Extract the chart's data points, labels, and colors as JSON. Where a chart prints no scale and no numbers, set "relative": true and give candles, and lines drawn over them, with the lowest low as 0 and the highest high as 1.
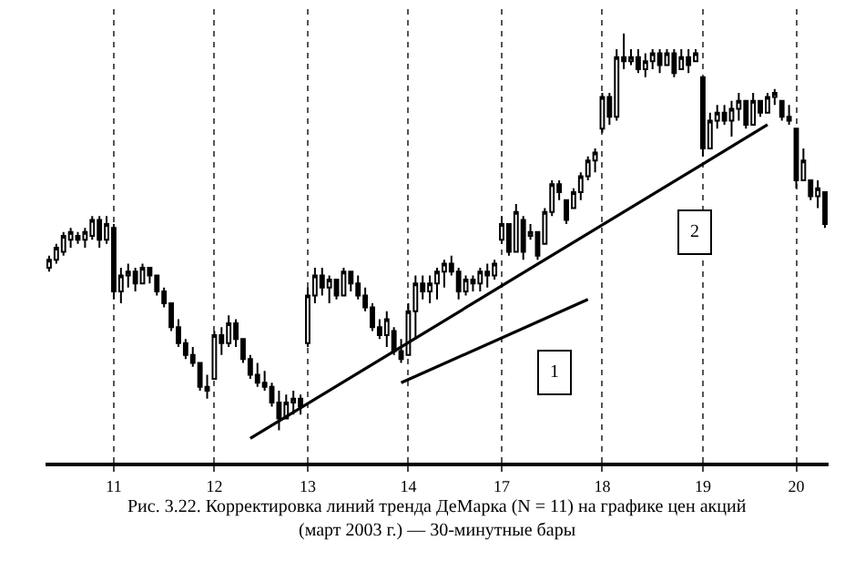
{
  "chart_data": {
    "type": "candlestick",
    "relative": true,
    "grid": "x",
    "categories": [
      null,
      null,
      null,
      null,
      null,
      null,
      null,
      null,
      null,
      "11",
      null,
      null,
      null,
      null,
      null,
      null,
      null,
      null,
      null,
      null,
      null,
      null,
      null,
      "12",
      null,
      null,
      null,
      null,
      null,
      null,
      null,
      null,
      null,
      null,
      null,
      null,
      "13",
      null,
      null,
      null,
      null,
      null,
      null,
      null,
      null,
      null,
      null,
      null,
      null,
      null,
      "14",
      null,
      null,
      null,
      null,
      null,
      null,
      null,
      null,
      null,
      null,
      null,
      null,
      "17",
      null,
      null,
      null,
      null,
      null,
      null,
      null,
      null,
      null,
      null,
      null,
      null,
      null,
      "18",
      null,
      null,
      null,
      null,
      null,
      null,
      null,
      null,
      null,
      null,
      null,
      null,
      null,
      "19",
      null,
      null,
      null,
      null,
      null,
      null,
      null,
      null,
      null,
      null,
      null,
      null,
      "20",
      null,
      null,
      null,
      null
    ],
    "series": [
      {
        "color": "#000000",
        "ohlc": [
          [
            0.41,
            0.44,
            0.4,
            0.43
          ],
          [
            0.43,
            0.47,
            0.42,
            0.46
          ],
          [
            0.45,
            0.5,
            0.44,
            0.49
          ],
          [
            0.48,
            0.51,
            0.46,
            0.5
          ],
          [
            0.49,
            0.5,
            0.47,
            0.48
          ],
          [
            0.48,
            0.51,
            0.46,
            0.5
          ],
          [
            0.49,
            0.54,
            0.48,
            0.53
          ],
          [
            0.53,
            0.54,
            0.46,
            0.48
          ],
          [
            0.48,
            0.54,
            0.47,
            0.52
          ],
          [
            0.51,
            0.52,
            0.33,
            0.35
          ],
          [
            0.35,
            0.41,
            0.32,
            0.39
          ],
          [
            0.39,
            0.42,
            0.36,
            0.4
          ],
          [
            0.4,
            0.41,
            0.35,
            0.37
          ],
          [
            0.37,
            0.42,
            0.37,
            0.41
          ],
          [
            0.41,
            0.41,
            0.37,
            0.39
          ],
          [
            0.39,
            0.39,
            0.34,
            0.35
          ],
          [
            0.35,
            0.36,
            0.31,
            0.32
          ],
          [
            0.32,
            0.32,
            0.25,
            0.26
          ],
          [
            0.26,
            0.28,
            0.21,
            0.22
          ],
          [
            0.22,
            0.23,
            0.18,
            0.19
          ],
          [
            0.19,
            0.21,
            0.16,
            0.17
          ],
          [
            0.17,
            0.17,
            0.1,
            0.11
          ],
          [
            0.11,
            0.14,
            0.08,
            0.1
          ],
          [
            0.13,
            0.25,
            0.13,
            0.24
          ],
          [
            0.24,
            0.26,
            0.19,
            0.22
          ],
          [
            0.22,
            0.29,
            0.21,
            0.27
          ],
          [
            0.27,
            0.28,
            0.21,
            0.23
          ],
          [
            0.23,
            0.23,
            0.17,
            0.18
          ],
          [
            0.18,
            0.19,
            0.13,
            0.14
          ],
          [
            0.14,
            0.17,
            0.11,
            0.12
          ],
          [
            0.12,
            0.15,
            0.1,
            0.11
          ],
          [
            0.11,
            0.12,
            0.06,
            0.07
          ],
          [
            0.07,
            0.1,
            0,
            0.03
          ],
          [
            0.03,
            0.09,
            0.03,
            0.07
          ],
          [
            0.07,
            0.1,
            0.04,
            0.08
          ],
          [
            0.08,
            0.09,
            0.04,
            0.06
          ],
          [
            0.22,
            0.36,
            0.21,
            0.34
          ],
          [
            0.34,
            0.41,
            0.32,
            0.39
          ],
          [
            0.39,
            0.41,
            0.34,
            0.36
          ],
          [
            0.36,
            0.39,
            0.32,
            0.38
          ],
          [
            0.38,
            0.38,
            0.33,
            0.34
          ],
          [
            0.34,
            0.41,
            0.34,
            0.4
          ],
          [
            0.4,
            0.4,
            0.35,
            0.37
          ],
          [
            0.37,
            0.39,
            0.33,
            0.34
          ],
          [
            0.34,
            0.36,
            0.3,
            0.31
          ],
          [
            0.31,
            0.32,
            0.25,
            0.26
          ],
          [
            0.26,
            0.28,
            0.23,
            0.24
          ],
          [
            0.24,
            0.3,
            0.21,
            0.28
          ],
          [
            0.25,
            0.26,
            0.19,
            0.2
          ],
          [
            0.2,
            0.23,
            0.17,
            0.18
          ],
          [
            0.19,
            0.32,
            0.19,
            0.3
          ],
          [
            0.3,
            0.39,
            0.23,
            0.37
          ],
          [
            0.37,
            0.39,
            0.33,
            0.35
          ],
          [
            0.35,
            0.39,
            0.32,
            0.37
          ],
          [
            0.37,
            0.41,
            0.33,
            0.4
          ],
          [
            0.4,
            0.43,
            0.36,
            0.42
          ],
          [
            0.42,
            0.44,
            0.39,
            0.4
          ],
          [
            0.4,
            0.41,
            0.33,
            0.35
          ],
          [
            0.35,
            0.39,
            0.34,
            0.38
          ],
          [
            0.38,
            0.39,
            0.35,
            0.37
          ],
          [
            0.37,
            0.41,
            0.35,
            0.4
          ],
          [
            0.4,
            0.42,
            0.36,
            0.39
          ],
          [
            0.39,
            0.43,
            0.38,
            0.42
          ],
          [
            0.48,
            0.54,
            0.47,
            0.52
          ],
          [
            0.52,
            0.52,
            0.44,
            0.45
          ],
          [
            0.45,
            0.57,
            0.45,
            0.55
          ],
          [
            0.53,
            0.54,
            0.43,
            0.45
          ],
          [
            0.49,
            0.52,
            0.48,
            0.5
          ],
          [
            0.5,
            0.5,
            0.43,
            0.44
          ],
          [
            0.47,
            0.56,
            0.47,
            0.55
          ],
          [
            0.55,
            0.63,
            0.54,
            0.62
          ],
          [
            0.62,
            0.63,
            0.58,
            0.6
          ],
          [
            0.58,
            0.58,
            0.52,
            0.53
          ],
          [
            0.56,
            0.61,
            0.56,
            0.6
          ],
          [
            0.6,
            0.65,
            0.58,
            0.64
          ],
          [
            0.64,
            0.69,
            0.63,
            0.68
          ],
          [
            0.68,
            0.71,
            0.65,
            0.7
          ],
          [
            0.76,
            0.85,
            0.75,
            0.84
          ],
          [
            0.84,
            0.85,
            0.77,
            0.79
          ],
          [
            0.79,
            0.96,
            0.78,
            0.94
          ],
          [
            0.94,
            1.0,
            0.91,
            0.93
          ],
          [
            0.93,
            0.96,
            0.92,
            0.94
          ],
          [
            0.94,
            0.96,
            0.9,
            0.91
          ],
          [
            0.91,
            0.95,
            0.89,
            0.93
          ],
          [
            0.93,
            0.96,
            0.91,
            0.95
          ],
          [
            0.95,
            0.96,
            0.9,
            0.92
          ],
          [
            0.92,
            0.96,
            0.92,
            0.95
          ],
          [
            0.95,
            0.96,
            0.89,
            0.9
          ],
          [
            0.91,
            0.96,
            0.91,
            0.94
          ],
          [
            0.94,
            0.96,
            0.9,
            0.92
          ],
          [
            0.93,
            0.96,
            0.93,
            0.95
          ],
          [
            0.89,
            0.89,
            0.69,
            0.71
          ],
          [
            0.71,
            0.8,
            0.71,
            0.78
          ],
          [
            0.78,
            0.82,
            0.76,
            0.8
          ],
          [
            0.8,
            0.82,
            0.77,
            0.78
          ],
          [
            0.78,
            0.83,
            0.74,
            0.81
          ],
          [
            0.81,
            0.85,
            0.78,
            0.83
          ],
          [
            0.83,
            0.83,
            0.76,
            0.77
          ],
          [
            0.77,
            0.85,
            0.77,
            0.83
          ],
          [
            0.83,
            0.83,
            0.79,
            0.8
          ],
          [
            0.8,
            0.85,
            0.8,
            0.84
          ],
          [
            0.84,
            0.86,
            0.82,
            0.85
          ],
          [
            0.83,
            0.83,
            0.78,
            0.79
          ],
          [
            0.79,
            0.82,
            0.77,
            0.78
          ],
          [
            0.76,
            0.76,
            0.61,
            0.63
          ],
          [
            0.63,
            0.71,
            0.63,
            0.68
          ],
          [
            0.63,
            0.63,
            0.58,
            0.59
          ],
          [
            0.59,
            0.63,
            0.56,
            0.61
          ],
          [
            0.6,
            0.6,
            0.51,
            0.52
          ]
        ]
      },
      {
        "type": "line",
        "color": "#000000",
        "values": [
          null,
          null,
          null,
          null,
          null,
          null,
          null,
          null,
          null,
          null,
          null,
          null,
          null,
          null,
          null,
          null,
          null,
          null,
          null,
          null,
          null,
          null,
          null,
          null,
          null,
          null,
          null,
          null,
          -0.02,
          null,
          null,
          null,
          null,
          null,
          null,
          null,
          null,
          null,
          null,
          null,
          null,
          null,
          null,
          null,
          null,
          null,
          null,
          null,
          null,
          null,
          null,
          null,
          null,
          null,
          null,
          null,
          null,
          null,
          null,
          null,
          null,
          null,
          null,
          null,
          null,
          null,
          null,
          null,
          null,
          null,
          null,
          null,
          null,
          null,
          null,
          null,
          null,
          null,
          null,
          null,
          null,
          null,
          null,
          null,
          null,
          null,
          null,
          null,
          null,
          null,
          null,
          null,
          null,
          null,
          null,
          null,
          null,
          null,
          null,
          null,
          0.77,
          null,
          null,
          null,
          null,
          null,
          null,
          null,
          null
        ]
      },
      {
        "type": "line",
        "color": "#000000",
        "values": [
          null,
          null,
          null,
          null,
          null,
          null,
          null,
          null,
          null,
          null,
          null,
          null,
          null,
          null,
          null,
          null,
          null,
          null,
          null,
          null,
          null,
          null,
          null,
          null,
          null,
          null,
          null,
          null,
          null,
          null,
          null,
          null,
          null,
          null,
          null,
          null,
          null,
          null,
          null,
          null,
          null,
          null,
          null,
          null,
          null,
          null,
          null,
          null,
          null,
          0.12,
          null,
          null,
          null,
          null,
          null,
          null,
          null,
          null,
          null,
          null,
          null,
          null,
          null,
          null,
          null,
          null,
          null,
          null,
          null,
          null,
          null,
          null,
          null,
          null,
          null,
          0.33,
          null,
          null,
          null,
          null,
          null,
          null,
          null,
          null,
          null,
          null,
          null,
          null,
          null,
          null,
          null,
          null,
          null,
          null,
          null,
          null,
          null,
          null,
          null,
          null,
          null,
          null,
          null,
          null,
          null,
          null,
          null,
          null,
          null
        ]
      }
    ],
    "annotations": [
      "1",
      "2",
      "Рис. 3.22. Корректировка линий тренда ДеМарка (N = 11) на графике цен акций",
      "(март 2003 г.) — 30-минутные бары"
    ]
  }
}
